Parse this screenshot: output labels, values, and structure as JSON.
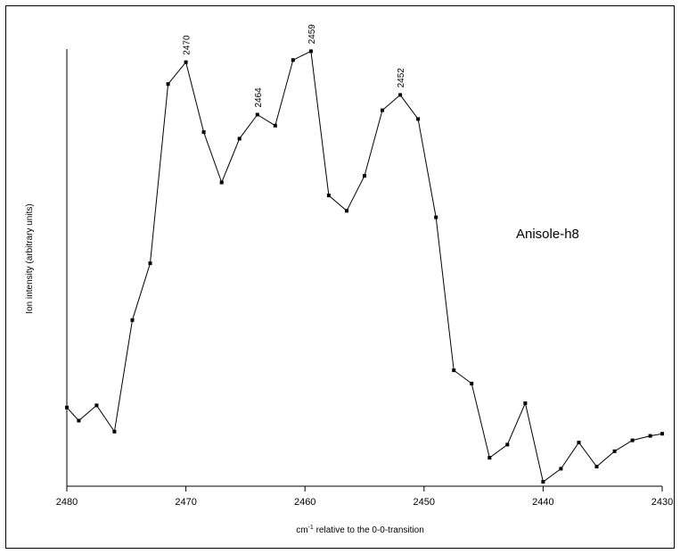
{
  "chart_data": {
    "type": "line",
    "title": "",
    "xlabel": {
      "prefix": "cm",
      "superscript": "-1",
      "rest": " relative to the 0-0-transition"
    },
    "ylabel": "Ion intensity (arbitrary units)",
    "annotation": "Anisole-h8",
    "xlim": [
      2480,
      2430
    ],
    "ylim": [
      0,
      100
    ],
    "x_reversed": true,
    "xticks": [
      2480,
      2470,
      2460,
      2450,
      2440,
      2430
    ],
    "xtick_labels": [
      "2480",
      "2470",
      "2460",
      "2450",
      "2440",
      "2430"
    ],
    "y_axis_ticks": false,
    "grid": false,
    "legend": "none",
    "peak_labels": [
      {
        "x": 2470,
        "label": "2470"
      },
      {
        "x": 2464,
        "label": "2464"
      },
      {
        "x": 2459,
        "label": "2459"
      },
      {
        "x": 2452,
        "label": "2452"
      }
    ],
    "series": [
      {
        "x": [
          2480,
          2479,
          2477.5,
          2476,
          2474.5,
          2473,
          2471.5,
          2470,
          2468.5,
          2467,
          2465.5,
          2464,
          2462.5,
          2461,
          2459.5,
          2458,
          2456.5,
          2455,
          2453.5,
          2452,
          2450.5,
          2449,
          2447.5,
          2446,
          2444.5,
          2443,
          2441.5,
          2440,
          2438.5,
          2437,
          2435.5,
          2434,
          2432.5,
          2431,
          2430
        ],
        "values": [
          18,
          15,
          18.5,
          12.5,
          38,
          51,
          92,
          97,
          81,
          69.5,
          79.5,
          85,
          82.5,
          97.5,
          99.5,
          66.5,
          63,
          71,
          86,
          89.5,
          84,
          61.5,
          26.5,
          23.5,
          6.5,
          9.5,
          19,
          1,
          4,
          10,
          4.5,
          8,
          10.5,
          11.5,
          12
        ]
      }
    ]
  }
}
